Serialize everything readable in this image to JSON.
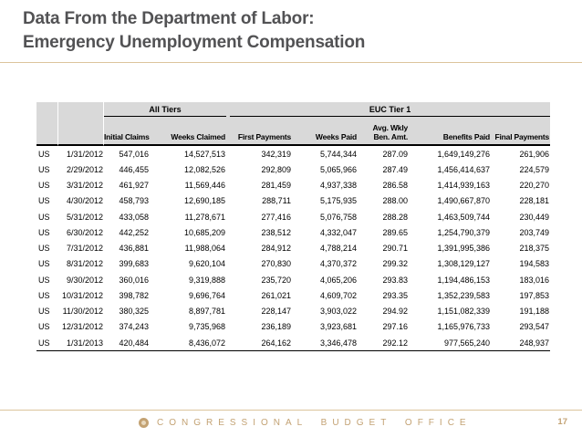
{
  "slide": {
    "title": [
      "Data From the Department of Labor:",
      "Emergency Unemployment Compensation"
    ],
    "footer": {
      "org": "CONGRESSIONAL BUDGET OFFICE",
      "page_number": "17"
    }
  },
  "colors": {
    "title_text": "#525254",
    "accent_rule": "#DCC49C",
    "footer_text": "#C3A273",
    "table_header_bg": "#D9D9D9",
    "table_text": "#000000"
  },
  "table": {
    "group_headers": [
      {
        "label": "All Tiers",
        "colspan": 2
      },
      {
        "label": "EUC Tier 1",
        "colspan": 5
      }
    ],
    "column_keys": [
      "state",
      "date",
      "initial_claims",
      "weeks_claimed",
      "first_payments",
      "weeks_paid",
      "avg_wkly_ben_amt",
      "benefits_paid",
      "final_payments"
    ],
    "columns": [
      {
        "label": "Initial Claims"
      },
      {
        "label": "Weeks Claimed"
      },
      {
        "label": "First Payments"
      },
      {
        "label": "Weeks Paid"
      },
      {
        "label": "Avg. Wkly",
        "label2": "Ben. Amt."
      },
      {
        "label": "Benefits Paid"
      },
      {
        "label": "Final Payments"
      }
    ],
    "rows": [
      [
        "US",
        "1/31/2012",
        "547,016",
        "14,527,513",
        "342,319",
        "5,744,344",
        "287.09",
        "1,649,149,276",
        "261,906"
      ],
      [
        "US",
        "2/29/2012",
        "446,455",
        "12,082,526",
        "292,809",
        "5,065,966",
        "287.49",
        "1,456,414,637",
        "224,579"
      ],
      [
        "US",
        "3/31/2012",
        "461,927",
        "11,569,446",
        "281,459",
        "4,937,338",
        "286.58",
        "1,414,939,163",
        "220,270"
      ],
      [
        "US",
        "4/30/2012",
        "458,793",
        "12,690,185",
        "288,711",
        "5,175,935",
        "288.00",
        "1,490,667,870",
        "228,181"
      ],
      [
        "US",
        "5/31/2012",
        "433,058",
        "11,278,671",
        "277,416",
        "5,076,758",
        "288.28",
        "1,463,509,744",
        "230,449"
      ],
      [
        "US",
        "6/30/2012",
        "442,252",
        "10,685,209",
        "238,512",
        "4,332,047",
        "289.65",
        "1,254,790,379",
        "203,749"
      ],
      [
        "US",
        "7/31/2012",
        "436,881",
        "11,988,064",
        "284,912",
        "4,788,214",
        "290.71",
        "1,391,995,386",
        "218,375"
      ],
      [
        "US",
        "8/31/2012",
        "399,683",
        "9,620,104",
        "270,830",
        "4,370,372",
        "299.32",
        "1,308,129,127",
        "194,583"
      ],
      [
        "US",
        "9/30/2012",
        "360,016",
        "9,319,888",
        "235,720",
        "4,065,206",
        "293.83",
        "1,194,486,153",
        "183,016"
      ],
      [
        "US",
        "10/31/2012",
        "398,782",
        "9,696,764",
        "261,021",
        "4,609,702",
        "293.35",
        "1,352,239,583",
        "197,853"
      ],
      [
        "US",
        "11/30/2012",
        "380,325",
        "8,897,781",
        "228,147",
        "3,903,022",
        "294.92",
        "1,151,082,339",
        "191,188"
      ],
      [
        "US",
        "12/31/2012",
        "374,243",
        "9,735,968",
        "236,189",
        "3,923,681",
        "297.16",
        "1,165,976,733",
        "293,547"
      ],
      [
        "US",
        "1/31/2013",
        "420,484",
        "8,436,072",
        "264,162",
        "3,346,478",
        "292.12",
        "977,565,240",
        "248,937"
      ]
    ]
  }
}
